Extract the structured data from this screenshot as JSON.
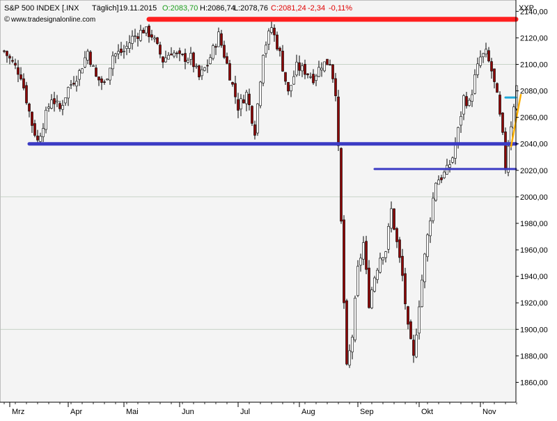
{
  "header": {
    "symbol": "S&P 500 INDEX [.INX",
    "period": "Täglich]",
    "date": "19.11.2015",
    "open": "O:2083,70",
    "high": "H:2086,74",
    "low": "L:2078,76",
    "close": "C:2081,24",
    "change": "-2,34",
    "change_pct": "-0,11%",
    "watermark": "www.tradesignalonline.com",
    "corner_label": "XXP"
  },
  "colors": {
    "up_candle": "#ffffff",
    "down_candle": "#8b0000",
    "resistance_line": "#ff2020",
    "support_line": "#3b3bc4",
    "cyan_marker": "#1fa8d8",
    "trend_line": "#ffb000",
    "open_text": "#1e9e1e",
    "close_text": "#e00000"
  },
  "chart_data": {
    "type": "candlestick",
    "ylim": [
      1845,
      2147
    ],
    "y_ticks": [
      "1860,00",
      "1880,00",
      "1900,00",
      "1920,00",
      "1940,00",
      "1960,00",
      "1980,00",
      "2000,00",
      "2020,00",
      "2040,00",
      "2060,00",
      "2080,00",
      "2100,00",
      "2120,00",
      "2140,00"
    ],
    "y_tick_values": [
      1860,
      1880,
      1900,
      1920,
      1940,
      1960,
      1980,
      2000,
      2020,
      2040,
      2060,
      2080,
      2100,
      2120,
      2140
    ],
    "x_labels": [
      "Mrz",
      "Apr",
      "Mai",
      "Jun",
      "Jul",
      "Aug",
      "Sep",
      "Okt",
      "Nov"
    ],
    "x_label_index": [
      2,
      23,
      43,
      63,
      84,
      106,
      127,
      149,
      171
    ],
    "ohlc_points": [
      [
        0,
        2110
      ],
      [
        6,
        2092
      ],
      [
        10,
        2055
      ],
      [
        12,
        2042
      ],
      [
        17,
        2075
      ],
      [
        20,
        2066
      ],
      [
        23,
        2082
      ],
      [
        27,
        2094
      ],
      [
        30,
        2110
      ],
      [
        33,
        2090
      ],
      [
        36,
        2085
      ],
      [
        39,
        2107
      ],
      [
        43,
        2110
      ],
      [
        46,
        2120
      ],
      [
        50,
        2126
      ],
      [
        53,
        2122
      ],
      [
        57,
        2103
      ],
      [
        60,
        2110
      ],
      [
        63,
        2105
      ],
      [
        67,
        2105
      ],
      [
        70,
        2090
      ],
      [
        73,
        2100
      ],
      [
        77,
        2122
      ],
      [
        80,
        2100
      ],
      [
        84,
        2068
      ],
      [
        87,
        2078
      ],
      [
        90,
        2050
      ],
      [
        93,
        2110
      ],
      [
        96,
        2128
      ],
      [
        99,
        2108
      ],
      [
        102,
        2078
      ],
      [
        105,
        2098
      ],
      [
        108,
        2095
      ],
      [
        111,
        2090
      ],
      [
        114,
        2100
      ],
      [
        117,
        2102
      ],
      [
        119,
        2080
      ],
      [
        120,
        2035
      ],
      [
        121,
        1980
      ],
      [
        122,
        1920
      ],
      [
        123,
        1870
      ],
      [
        125,
        1895
      ],
      [
        127,
        1945
      ],
      [
        129,
        1965
      ],
      [
        131,
        1920
      ],
      [
        133,
        1940
      ],
      [
        135,
        1955
      ],
      [
        137,
        1960
      ],
      [
        139,
        1990
      ],
      [
        141,
        1965
      ],
      [
        143,
        1940
      ],
      [
        145,
        1900
      ],
      [
        147,
        1878
      ],
      [
        149,
        1920
      ],
      [
        151,
        1955
      ],
      [
        153,
        1985
      ],
      [
        155,
        2012
      ],
      [
        157,
        2015
      ],
      [
        159,
        2020
      ],
      [
        161,
        2030
      ],
      [
        163,
        2050
      ],
      [
        165,
        2075
      ],
      [
        167,
        2070
      ],
      [
        169,
        2090
      ],
      [
        171,
        2105
      ],
      [
        173,
        2108
      ],
      [
        175,
        2095
      ],
      [
        177,
        2075
      ],
      [
        179,
        2045
      ],
      [
        180,
        2022
      ],
      [
        181,
        2040
      ],
      [
        182,
        2055
      ],
      [
        183,
        2070
      ],
      [
        184,
        2083
      ]
    ],
    "resistance": {
      "value": 2134,
      "from": 52,
      "to": 187
    },
    "support_upper": {
      "value": 2040,
      "from": 9,
      "to": 187
    },
    "support_lower": {
      "value": 2021,
      "from": 133,
      "to": 187
    },
    "cyan_marker": {
      "value": 2075,
      "from": 180,
      "to": 186
    },
    "trend_line": {
      "from_index": 182,
      "from_value": 2038,
      "to_index": 187,
      "to_value": 2077
    }
  }
}
